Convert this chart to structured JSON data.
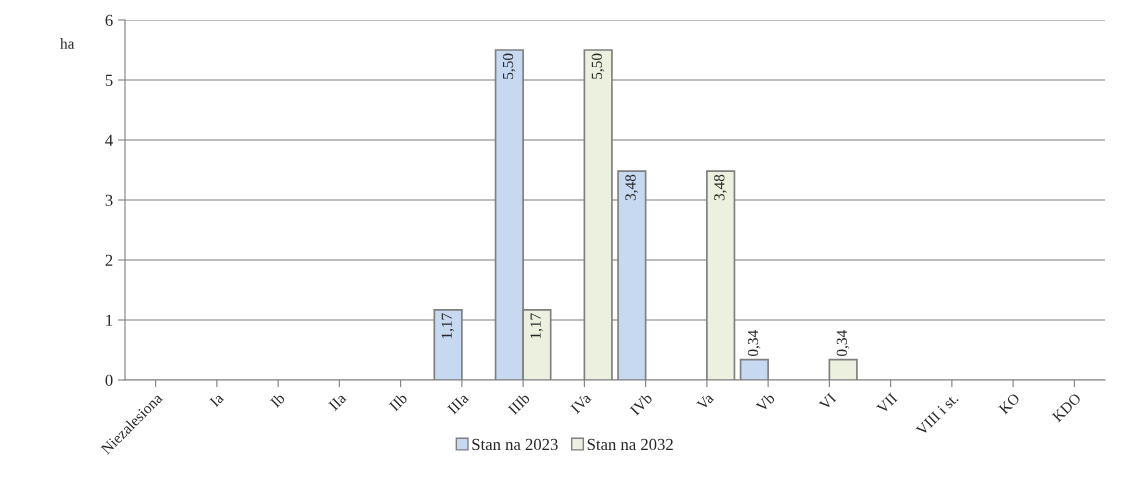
{
  "chart_data": {
    "type": "bar",
    "ylabel": "ha",
    "categories": [
      "Niezalesiona",
      "Ia",
      "Ib",
      "IIa",
      "IIb",
      "IIIa",
      "IIIb",
      "IVa",
      "IVb",
      "Va",
      "Vb",
      "VI",
      "VII",
      "VIII i st.",
      "KO",
      "KDO"
    ],
    "series": [
      {
        "name": "Stan na 2023",
        "color": "#c6d9f1",
        "values": [
          null,
          null,
          null,
          null,
          null,
          1.17,
          5.5,
          null,
          3.48,
          null,
          0.34,
          null,
          null,
          null,
          null,
          null
        ],
        "value_labels": [
          null,
          null,
          null,
          null,
          null,
          "1,17",
          "5,50",
          null,
          "3,48",
          null,
          "0,34",
          null,
          null,
          null,
          null,
          null
        ]
      },
      {
        "name": "Stan na 2032",
        "color": "#ebf1de",
        "values": [
          null,
          null,
          null,
          null,
          null,
          null,
          1.17,
          5.5,
          null,
          3.48,
          null,
          0.34,
          null,
          null,
          null,
          null
        ],
        "value_labels": [
          null,
          null,
          null,
          null,
          null,
          null,
          "1,17",
          "5,50",
          null,
          "3,48",
          null,
          "0,34",
          null,
          null,
          null,
          null
        ]
      }
    ],
    "ylim": [
      0,
      6
    ],
    "yticks": [
      0,
      1,
      2,
      3,
      4,
      5,
      6
    ],
    "grid": "y",
    "legend": "bottom"
  }
}
